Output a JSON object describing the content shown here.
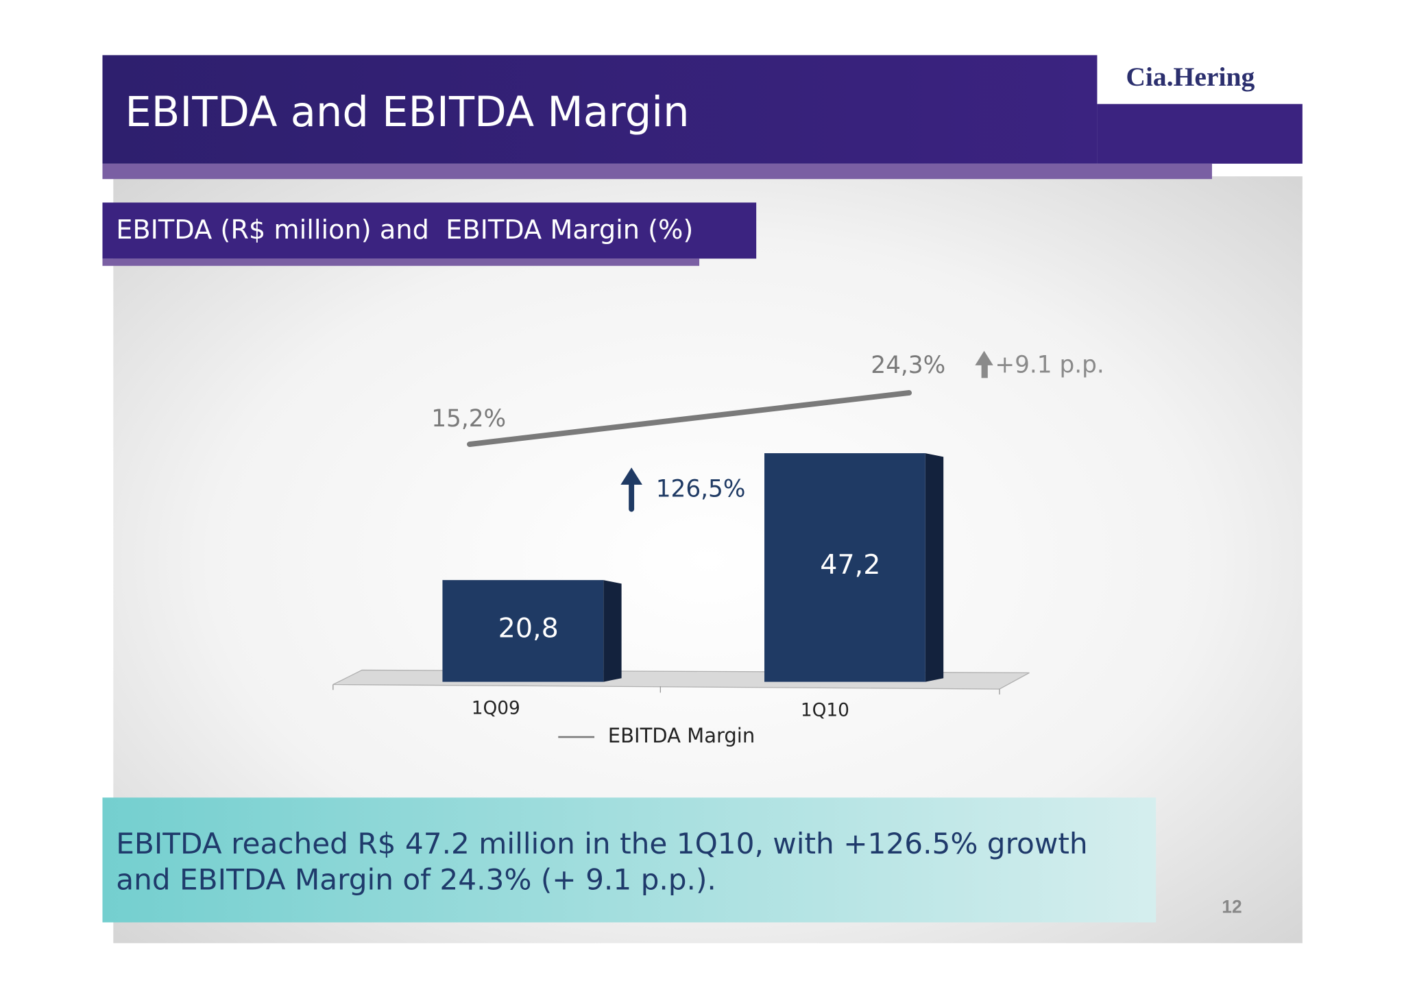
{
  "header": {
    "title": "EBITDA and EBITDA Margin",
    "logo": "Cia.Hering"
  },
  "chart_data": {
    "type": "bar",
    "title": "EBITDA (R$ million) and  EBITDA Margin (%)",
    "categories": [
      "1Q09",
      "1Q10"
    ],
    "values": [
      20.8,
      47.2
    ],
    "value_labels": [
      "20,8",
      "47,2"
    ],
    "color": "#1f3a64",
    "ylim": [
      0,
      70
    ],
    "y2lim": [
      -26.5,
      33
    ],
    "series": [
      {
        "name": "EBITDA Margin",
        "type": "line",
        "axis": "y2",
        "color": "#7a7a7a",
        "values": [
          15.2,
          24.3
        ],
        "value_labels": [
          "15,2%",
          "24,3%"
        ]
      }
    ],
    "annotations": [
      "126,5%",
      "+9.1 p.p."
    ]
  },
  "footer": {
    "lines": [
      "EBITDA reached R$ 47.2 million in the 1Q10, with +126.5% growth",
      "and EBITDA Margin of 24.3% (+ 9.1 p.p.)."
    ],
    "page": "12"
  }
}
